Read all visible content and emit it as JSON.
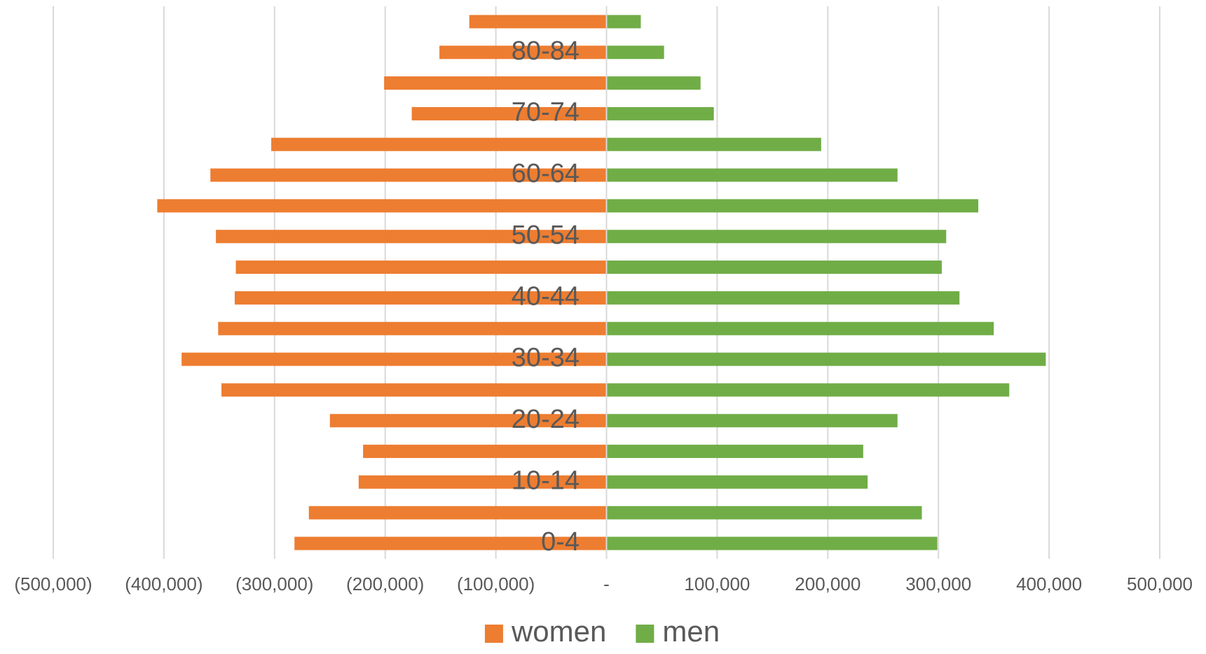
{
  "chart_data": {
    "type": "pyramid",
    "categories": [
      "0-4",
      null,
      "10-14",
      null,
      "20-24",
      null,
      "30-34",
      null,
      "40-44",
      null,
      "50-54",
      null,
      "60-64",
      null,
      "70-74",
      null,
      "80-84",
      null
    ],
    "series": [
      {
        "name": "women",
        "color": "#ed7d31",
        "values": [
          -282000,
          -269000,
          -224000,
          -220000,
          -250000,
          -348000,
          -384000,
          -351000,
          -336000,
          -335000,
          -353000,
          -406000,
          -358000,
          -303000,
          -176000,
          -201000,
          -151000,
          -124000
        ]
      },
      {
        "name": "men",
        "color": "#70ad47",
        "values": [
          299000,
          285000,
          236000,
          232000,
          263000,
          364000,
          397000,
          350000,
          319000,
          303000,
          307000,
          336000,
          263000,
          194000,
          97000,
          85000,
          52000,
          31000
        ]
      }
    ],
    "xlim": [
      -500000,
      500000
    ],
    "xticks": [
      {
        "value": -500000,
        "label": "(500,000)"
      },
      {
        "value": -400000,
        "label": "(400,000)"
      },
      {
        "value": -300000,
        "label": "(300,000)"
      },
      {
        "value": -200000,
        "label": "(200,000)"
      },
      {
        "value": -100000,
        "label": "(100,000)"
      },
      {
        "value": 0,
        "label": "-"
      },
      {
        "value": 100000,
        "label": "100,000"
      },
      {
        "value": 200000,
        "label": "200,000"
      },
      {
        "value": 300000,
        "label": "300,000"
      },
      {
        "value": 400000,
        "label": "400,000"
      },
      {
        "value": 500000,
        "label": "500,000"
      }
    ],
    "grid": true,
    "legend": "bottom"
  }
}
